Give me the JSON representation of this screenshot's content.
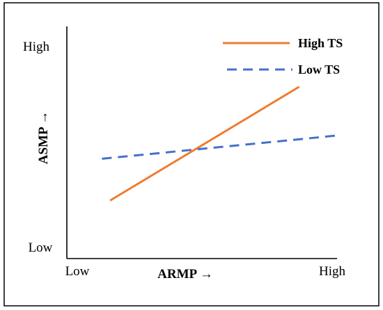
{
  "chart_data": {
    "type": "line",
    "xlabel": "ARMP →",
    "ylabel": "ASMP →",
    "x_tick_labels": [
      "Low",
      "High"
    ],
    "y_tick_labels": [
      "Low",
      "High"
    ],
    "xlim": [
      0,
      1
    ],
    "ylim": [
      0,
      1
    ],
    "grid": false,
    "legend_position": "top-right",
    "series": [
      {
        "name": "High TS",
        "x": [
          0.16,
          0.86
        ],
        "y": [
          0.25,
          0.74
        ],
        "color": "#ED7D31",
        "style": "solid"
      },
      {
        "name": "Low TS",
        "x": [
          0.13,
          1.0
        ],
        "y": [
          0.43,
          0.53
        ],
        "color": "#4472C4",
        "style": "dashed"
      }
    ]
  }
}
